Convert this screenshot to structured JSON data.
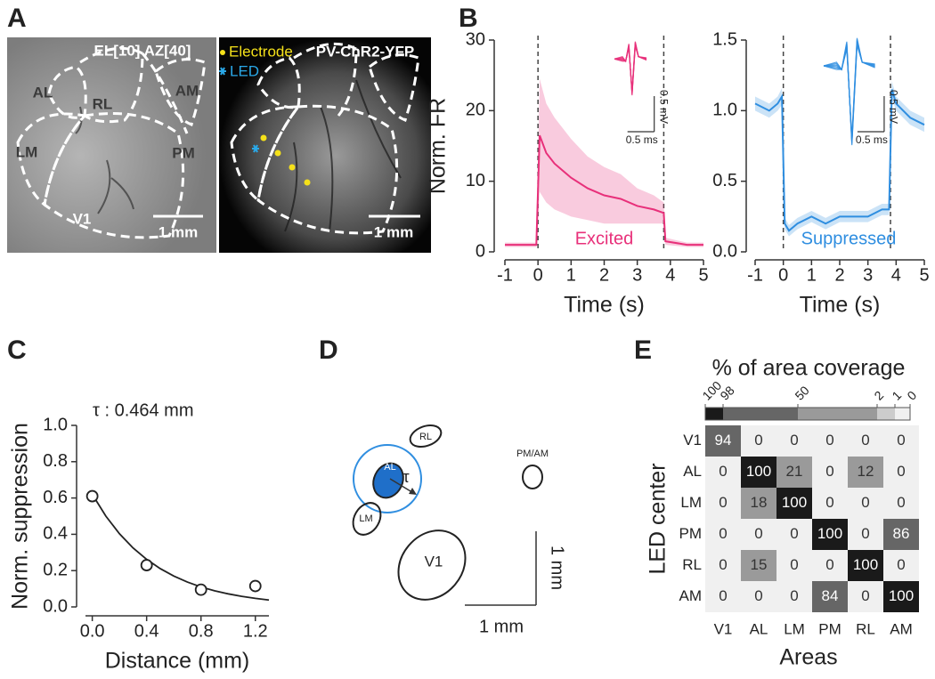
{
  "panel_labels": [
    "A",
    "B",
    "C",
    "D",
    "E"
  ],
  "panel_a": {
    "left_title": "EL[10]  AZ[40]",
    "electrode": "Electrode",
    "mouse_line": "PV-ChR2-YFP",
    "led": "LED",
    "areas": [
      "AL",
      "RL",
      "AM",
      "LM",
      "PM",
      "V1"
    ],
    "scale_left": "1 mm",
    "scale_right": "1 mm"
  },
  "panel_d": {
    "areas": [
      "AL",
      "RL",
      "LM",
      "V1",
      "PM/AM"
    ],
    "tau": "τ",
    "scale_x": "1 mm",
    "scale_y": "1 mm"
  },
  "chart_data": [
    {
      "type": "line",
      "xlabel": "Time (s)",
      "ylabel": "Norm. FR",
      "annotation": "Excited",
      "x": [
        -1,
        -0.5,
        -0.05,
        0.05,
        0.25,
        0.5,
        1,
        1.5,
        2,
        2.5,
        3,
        3.5,
        3.8,
        3.85,
        4.5,
        5
      ],
      "series": [
        {
          "color": "#e8307a",
          "values": [
            1,
            1,
            1,
            16.5,
            14,
            12.5,
            10.5,
            9,
            8,
            7.5,
            6.5,
            6,
            5.5,
            1.5,
            1,
            1
          ],
          "error": [
            0.3,
            0.3,
            0.3,
            8,
            7,
            6.5,
            5.5,
            4.5,
            4,
            3.5,
            2.5,
            2,
            1.5,
            0.5,
            0.3,
            0.3
          ]
        }
      ],
      "vlines": [
        0,
        3.8
      ],
      "xlim": [
        -1,
        5
      ],
      "ylim": [
        0,
        30
      ],
      "xticks": [
        -1,
        0,
        1,
        2,
        3,
        4,
        5
      ],
      "yticks": [
        0,
        10,
        20,
        30
      ],
      "inset": {
        "y_scale": "0.5 mV",
        "x_scale": "0.5 ms"
      }
    },
    {
      "type": "line",
      "xlabel": "Time (s)",
      "annotation": "Suppressed",
      "x": [
        -1,
        -0.5,
        -0.2,
        -0.05,
        0.05,
        0.2,
        0.5,
        1,
        1.5,
        2,
        2.5,
        3,
        3.5,
        3.75,
        3.85,
        4,
        4.5,
        5
      ],
      "series": [
        {
          "color": "#2f8ee0",
          "values": [
            1.05,
            1.0,
            1.05,
            1.1,
            0.2,
            0.15,
            0.2,
            0.25,
            0.2,
            0.25,
            0.25,
            0.25,
            0.3,
            0.3,
            1.15,
            1.05,
            0.95,
            0.9
          ],
          "error": [
            0.05,
            0.05,
            0.05,
            0.06,
            0.04,
            0.04,
            0.04,
            0.04,
            0.04,
            0.04,
            0.04,
            0.04,
            0.04,
            0.04,
            0.06,
            0.05,
            0.05,
            0.05
          ]
        }
      ],
      "vlines": [
        0,
        3.8
      ],
      "xlim": [
        -1,
        5
      ],
      "ylim": [
        0,
        1.5
      ],
      "xticks": [
        -1,
        0,
        1,
        2,
        3,
        4,
        5
      ],
      "yticks": [
        {
          "value": 0,
          "label": "0.0"
        },
        0.5,
        {
          "value": 1,
          "label": "1.0"
        },
        1.5
      ],
      "inset": {
        "y_scale": "0.5 mV",
        "x_scale": "0.5 ms"
      }
    },
    {
      "type": "scatter",
      "xlabel": "Distance (mm)",
      "ylabel": "Norm. suppression",
      "annotation": "τ : 0.464 mm",
      "color": "#222222",
      "x": [
        0,
        0.4,
        0.8,
        1.2
      ],
      "values": [
        0.61,
        0.23,
        0.095,
        0.115
      ],
      "error": [
        0.03,
        0.03,
        0.03,
        0.03
      ],
      "fit": {
        "x": [
          0,
          0.1,
          0.2,
          0.3,
          0.4,
          0.5,
          0.6,
          0.7,
          0.8,
          0.9,
          1.0,
          1.1,
          1.2,
          1.3
        ],
        "values": [
          0.62,
          0.5,
          0.403,
          0.325,
          0.262,
          0.211,
          0.17,
          0.137,
          0.11,
          0.089,
          0.072,
          0.058,
          0.047,
          0.038
        ]
      },
      "xlim": [
        -0.05,
        1.3
      ],
      "ylim": [
        0,
        1
      ],
      "xticks": [
        {
          "value": 0,
          "label": "0.0"
        },
        0.4,
        0.8,
        1.2
      ],
      "yticks": [
        {
          "value": 0,
          "label": "0.0"
        },
        0.2,
        0.4,
        0.6,
        0.8,
        {
          "value": 1,
          "label": "1.0"
        }
      ]
    },
    {
      "type": "heatmap",
      "title": "% of area coverage",
      "xlabel": "Areas",
      "ylabel": "LED center",
      "rows": [
        "V1",
        "AL",
        "LM",
        "PM",
        "RL",
        "AM"
      ],
      "columns": [
        "V1",
        "AL",
        "LM",
        "PM",
        "RL",
        "AM"
      ],
      "values": [
        [
          94,
          0,
          0,
          0,
          0,
          0
        ],
        [
          0,
          100,
          21,
          0,
          12,
          0
        ],
        [
          0,
          18,
          100,
          0,
          0,
          0
        ],
        [
          0,
          0,
          0,
          100,
          0,
          86
        ],
        [
          0,
          15,
          0,
          0,
          100,
          0
        ],
        [
          0,
          0,
          0,
          84,
          0,
          100
        ]
      ],
      "colorbar": {
        "ticks": [
          100,
          98,
          50,
          2,
          1,
          0
        ],
        "colors": [
          "#1a1a1a",
          "#666666",
          "#9a9a9a",
          "#cccccc",
          "#f0f0f0"
        ]
      }
    }
  ]
}
